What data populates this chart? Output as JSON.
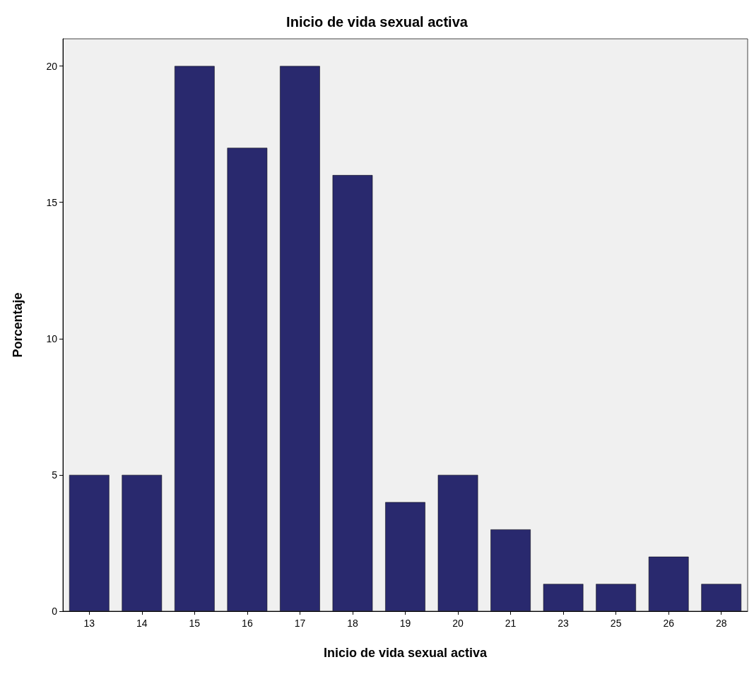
{
  "chart_data": {
    "type": "bar",
    "title": "Inicio de vida sexual activa",
    "xlabel": "Inicio de vida sexual activa",
    "ylabel": "Porcentaje",
    "categories": [
      "13",
      "14",
      "15",
      "16",
      "17",
      "18",
      "19",
      "20",
      "21",
      "23",
      "25",
      "26",
      "28"
    ],
    "values": [
      5,
      5,
      20,
      17,
      20,
      16,
      4,
      5,
      3,
      1,
      1,
      2,
      1
    ],
    "color": "#29296e",
    "ylim": [
      0,
      21
    ],
    "yticks": [
      0,
      5,
      10,
      15,
      20
    ],
    "grid": false
  }
}
